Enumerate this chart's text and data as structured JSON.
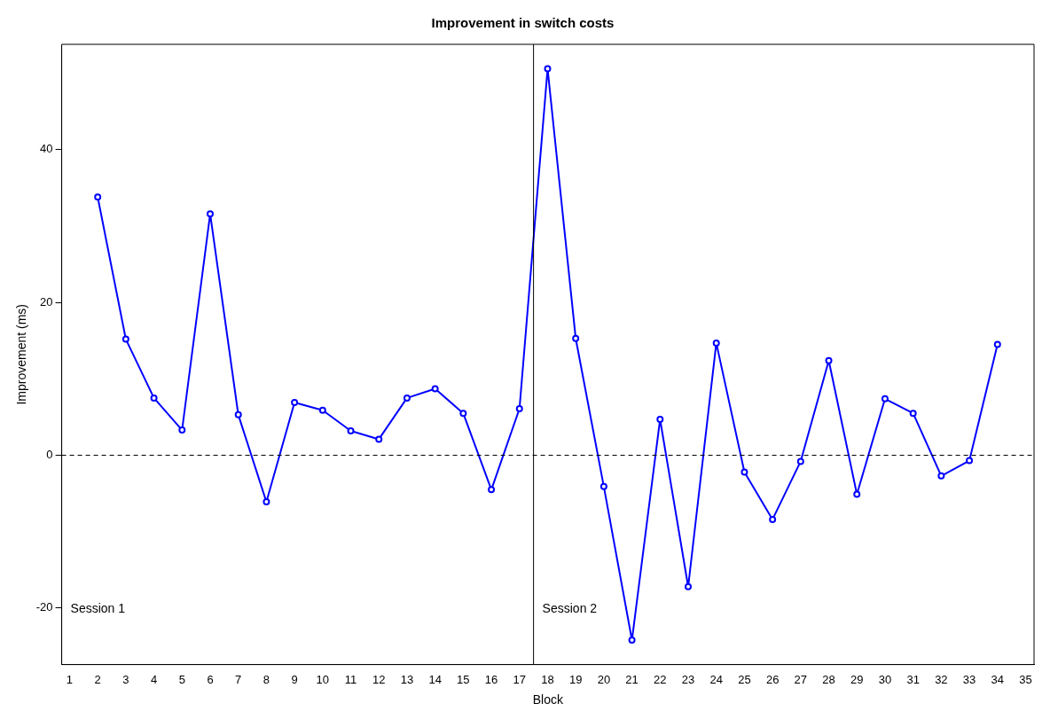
{
  "chart_data": {
    "type": "line",
    "title": "Improvement in switch costs",
    "xlabel": "Block",
    "ylabel": "Improvement (ms)",
    "x": [
      2,
      3,
      4,
      5,
      6,
      7,
      8,
      9,
      10,
      11,
      12,
      13,
      14,
      15,
      16,
      17,
      18,
      19,
      20,
      21,
      22,
      23,
      24,
      25,
      26,
      27,
      28,
      29,
      30,
      31,
      32,
      33,
      34
    ],
    "series": [
      {
        "color": "#0000ff",
        "values": [
          33.8,
          15.2,
          7.5,
          3.3,
          31.6,
          5.3,
          -6.1,
          6.9,
          5.9,
          3.2,
          2.1,
          7.5,
          8.7,
          5.5,
          -4.5,
          6.1,
          50.6,
          15.3,
          -4.1,
          -24.2,
          4.7,
          -17.2,
          14.7,
          -2.2,
          -8.4,
          -0.8,
          12.4,
          -5.1,
          7.4,
          5.5,
          -2.7,
          -0.7,
          14.5
        ]
      }
    ],
    "xlim": [
      0.72,
      35.3
    ],
    "xticks": [
      1,
      2,
      3,
      4,
      5,
      6,
      7,
      8,
      9,
      10,
      11,
      12,
      13,
      14,
      15,
      16,
      17,
      18,
      19,
      20,
      21,
      22,
      23,
      24,
      25,
      26,
      27,
      28,
      29,
      30,
      31,
      32,
      33,
      34,
      35
    ],
    "ylim": [
      -27.4,
      53.8
    ],
    "yticks": [
      -20,
      0,
      20,
      40
    ],
    "ref_lines": [
      {
        "axis": "x",
        "value": 17.5,
        "color": "#000000",
        "line_style": "solid"
      },
      {
        "axis": "y",
        "value": 0,
        "color": "#000000",
        "line_style": "dashed"
      }
    ],
    "annotations": [
      "Session 1",
      "Session 2"
    ],
    "marker": "circle",
    "line_style": "solid",
    "grid": false,
    "legend": false
  }
}
